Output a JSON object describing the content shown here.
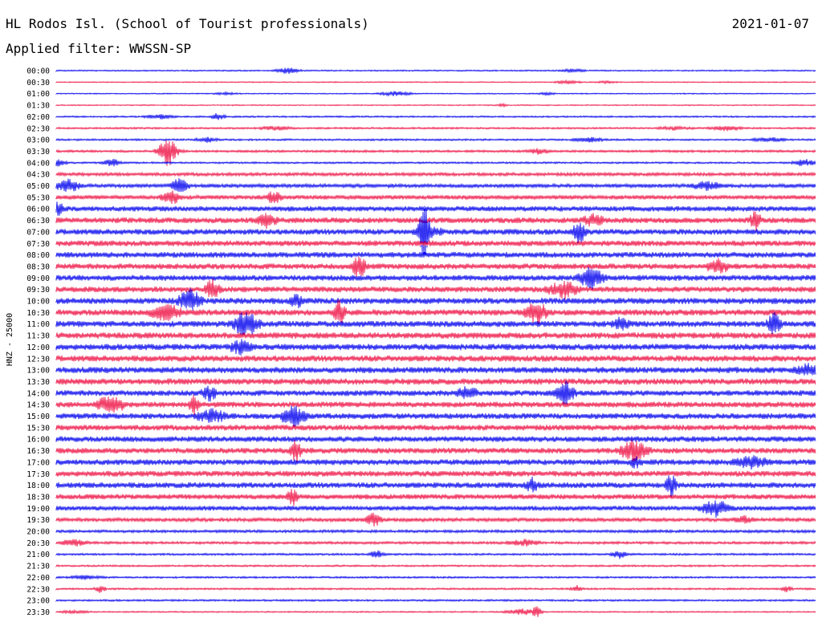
{
  "header": {
    "title": "HL Rodos Isl. (School of Tourist professionals)",
    "date": "2021-01-07",
    "filter_label": "Applied filter: WWSSN-SP"
  },
  "chart_data": {
    "type": "line",
    "title": "HL Rodos Isl. (School of Tourist professionals)",
    "ylabel": "HNZ - 25000",
    "xlabel": "",
    "colors": [
      "#0000ee",
      "#ee1144"
    ],
    "rows": [
      {
        "label": "00:00",
        "amp": 0.15
      },
      {
        "label": "00:30",
        "amp": 0.12
      },
      {
        "label": "01:00",
        "amp": 0.12
      },
      {
        "label": "01:30",
        "amp": 0.12
      },
      {
        "label": "02:00",
        "amp": 0.18
      },
      {
        "label": "02:30",
        "amp": 0.2
      },
      {
        "label": "03:00",
        "amp": 0.2
      },
      {
        "label": "03:30",
        "amp": 0.25
      },
      {
        "label": "04:00",
        "amp": 0.2
      },
      {
        "label": "04:30",
        "amp": 0.35
      },
      {
        "label": "05:00",
        "amp": 0.4
      },
      {
        "label": "05:30",
        "amp": 0.45
      },
      {
        "label": "06:00",
        "amp": 0.55
      },
      {
        "label": "06:30",
        "amp": 0.6
      },
      {
        "label": "07:00",
        "amp": 0.6
      },
      {
        "label": "07:30",
        "amp": 0.6
      },
      {
        "label": "08:00",
        "amp": 0.6
      },
      {
        "label": "08:30",
        "amp": 0.6
      },
      {
        "label": "09:00",
        "amp": 0.6
      },
      {
        "label": "09:30",
        "amp": 0.6
      },
      {
        "label": "10:00",
        "amp": 0.65
      },
      {
        "label": "10:30",
        "amp": 0.65
      },
      {
        "label": "11:00",
        "amp": 0.65
      },
      {
        "label": "11:30",
        "amp": 0.65
      },
      {
        "label": "12:00",
        "amp": 0.65
      },
      {
        "label": "12:30",
        "amp": 0.65
      },
      {
        "label": "13:00",
        "amp": 0.65
      },
      {
        "label": "13:30",
        "amp": 0.65
      },
      {
        "label": "14:00",
        "amp": 0.6
      },
      {
        "label": "14:30",
        "amp": 0.6
      },
      {
        "label": "15:00",
        "amp": 0.6
      },
      {
        "label": "15:30",
        "amp": 0.6
      },
      {
        "label": "16:00",
        "amp": 0.6
      },
      {
        "label": "16:30",
        "amp": 0.6
      },
      {
        "label": "17:00",
        "amp": 0.6
      },
      {
        "label": "17:30",
        "amp": 0.6
      },
      {
        "label": "18:00",
        "amp": 0.6
      },
      {
        "label": "18:30",
        "amp": 0.55
      },
      {
        "label": "19:00",
        "amp": 0.5
      },
      {
        "label": "19:30",
        "amp": 0.4
      },
      {
        "label": "20:00",
        "amp": 0.3
      },
      {
        "label": "20:30",
        "amp": 0.28
      },
      {
        "label": "21:00",
        "amp": 0.22
      },
      {
        "label": "21:30",
        "amp": 0.2
      },
      {
        "label": "22:00",
        "amp": 0.2
      },
      {
        "label": "22:30",
        "amp": 0.2
      },
      {
        "label": "23:00",
        "amp": 0.2
      },
      {
        "label": "23:30",
        "amp": 0.15
      }
    ]
  }
}
